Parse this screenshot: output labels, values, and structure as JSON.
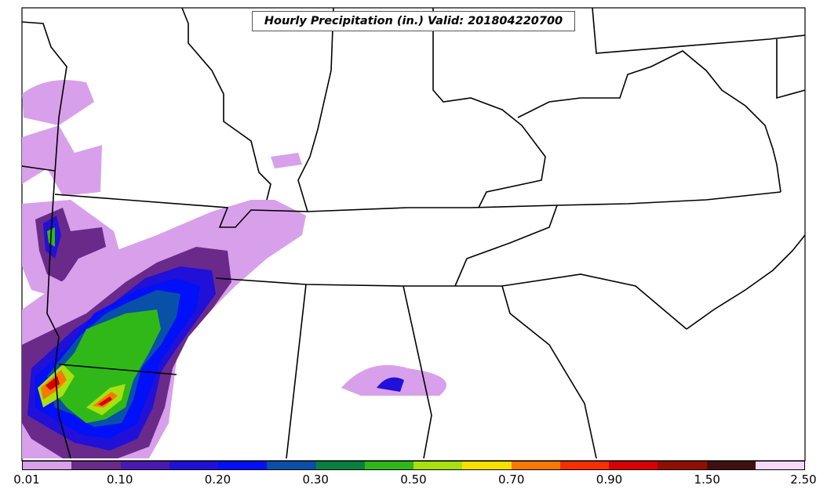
{
  "title": "Hourly Precipitation (in.) Valid: 201804220700",
  "colorbar": {
    "colors": [
      "#d8a0ea",
      "#6a2a8a",
      "#4a1ab0",
      "#2010d8",
      "#0010f8",
      "#0850a8",
      "#0a8040",
      "#30b818",
      "#a8e010",
      "#f8e000",
      "#f87800",
      "#f83000",
      "#d80000",
      "#901000",
      "#401010",
      "#f8d8f8"
    ],
    "tick_labels": [
      "0.01",
      "0.10",
      "0.20",
      "0.30",
      "0.50",
      "0.70",
      "0.90",
      "1.50",
      "2.50"
    ]
  }
}
